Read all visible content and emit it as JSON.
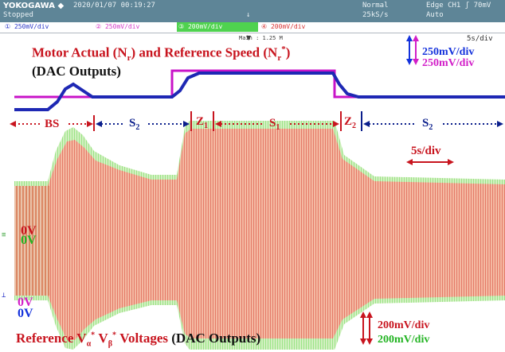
{
  "header": {
    "brand": "YOKOGAWA ◆",
    "datetime": "2020/01/07 00:19:27",
    "state": "Stopped",
    "trigger_mark": "↓",
    "mode": "Normal",
    "rate": "25kS/s",
    "trigger": "Edge CH1 ʃ 70mV",
    "trigger_mode": "Auto"
  },
  "channels": [
    {
      "label": "① 250mV/div",
      "color": "#2a36c8",
      "bg": "#ffffff"
    },
    {
      "label": "② 250mV/div",
      "color": "#d638c8",
      "bg": "#ffffff"
    },
    {
      "label": "③ 200mV/div",
      "color": "#ffffff",
      "bg": "#4fd24f"
    },
    {
      "label": "④ 200mV/div",
      "color": "#d83030",
      "bg": "#ffffff"
    }
  ],
  "main_label": "Main : 1.25 M",
  "timebase": "5s/div",
  "annotations": {
    "title_top": "Motor Actual (N",
    "title_top_sub1": "r",
    "title_top_mid": ") and Reference Speed (N",
    "title_top_sub2": "r",
    "title_top_sup": "*",
    "title_top_end": ")",
    "dac_top": "(DAC Outputs)",
    "scale_blue": "250mV/div",
    "scale_magenta": "250mV/div",
    "region_bs": "BS",
    "region_s2_left": "S",
    "region_s2_left_sub": "2",
    "region_z1": "Z",
    "region_z1_sub": "1",
    "region_s1": "S",
    "region_s1_sub": "1",
    "region_z2": "Z",
    "region_z2_sub": "2",
    "region_s2_right": "S",
    "region_s2_right_sub": "2",
    "time_div": "5s/div",
    "zero_red": "0V",
    "zero_green": "0V",
    "zero_magenta": "0V",
    "zero_blue": "0V",
    "bottom_ref": "Reference V",
    "bottom_alpha": "α",
    "bottom_beta_pre": " V",
    "bottom_beta": "β",
    "bottom_star": "*",
    "bottom_voltages": " Voltages ",
    "bottom_dac": "(DAC Outputs)",
    "scale_red": "200mV/div",
    "scale_green": "200mV/div"
  },
  "colors": {
    "red_text": "#c8141e",
    "navy_text": "#0a1e8c",
    "blue_text": "#1432dc",
    "magenta_text": "#d21ec8",
    "green_text": "#23b423",
    "ref_trace": "#c814c8",
    "speed_trace": "#1e28b4",
    "wave_red": "#e8786e",
    "wave_green": "#8ee67e"
  }
}
